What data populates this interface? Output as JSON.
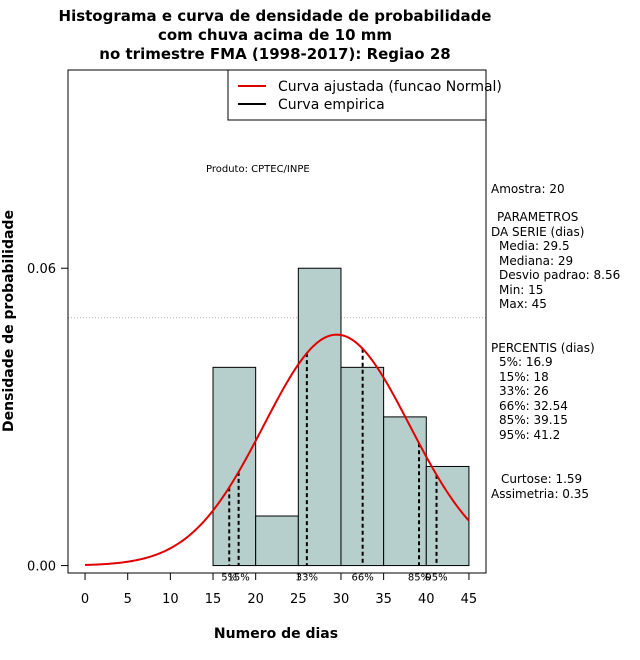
{
  "chart_data": {
    "type": "bar",
    "title_lines": [
      "Histograma e curva de densidade de probabilidade",
      "com chuva acima de 10 mm",
      "no trimestre FMA (1998-2017): Regiao 28"
    ],
    "xlabel": "Numero de dias",
    "ylabel": "Densidade de probabilidade",
    "xlim": [
      -2,
      47
    ],
    "ylim": [
      -0.0015,
      0.1
    ],
    "xticks": [
      0,
      5,
      10,
      15,
      20,
      25,
      30,
      35,
      40,
      45
    ],
    "yticks": [
      0.0,
      0.06
    ],
    "ytick_labels": [
      "0.00",
      "0.06"
    ],
    "gridlines_y": [
      0.05,
      0.1
    ],
    "bins": [
      {
        "from": 15,
        "to": 20,
        "density": 0.04
      },
      {
        "from": 20,
        "to": 25,
        "density": 0.01
      },
      {
        "from": 25,
        "to": 30,
        "density": 0.06
      },
      {
        "from": 30,
        "to": 35,
        "density": 0.04
      },
      {
        "from": 35,
        "to": 40,
        "density": 0.03
      },
      {
        "from": 40,
        "to": 45,
        "density": 0.02
      }
    ],
    "normal_fit": {
      "mean": 29.5,
      "sd": 8.56,
      "x_from": 0,
      "x_to": 45
    },
    "percentile_lines": [
      {
        "label": "5%",
        "x": 16.9
      },
      {
        "label": "15%",
        "x": 18
      },
      {
        "label": "33%",
        "x": 26
      },
      {
        "label": "66%",
        "x": 32.54
      },
      {
        "label": "85%",
        "x": 39.15
      },
      {
        "label": "95%",
        "x": 41.2
      }
    ],
    "legend": [
      {
        "label": "Curva ajustada (funcao Normal)",
        "color": "#e00000"
      },
      {
        "label": "Curva empirica",
        "color": "#000000"
      }
    ],
    "bar_color": "#b7cfcc",
    "curve_color": "#e00000",
    "product_text": "Produto: CPTEC/INPE"
  },
  "side_panel": {
    "sample": "Amostra: 20",
    "params_title_1": "PARAMETROS",
    "params_title_2": "DA SERIE (dias)",
    "params": [
      "Media: 29.5",
      "Mediana: 29",
      "Desvio padrao: 8.56",
      "Min: 15",
      "Max: 45"
    ],
    "percentis_title": "PERCENTIS (dias)",
    "percentis": [
      "5%: 16.9",
      "15%: 18",
      "33%: 26",
      "66%: 32.54",
      "85%: 39.15",
      "95%: 41.2"
    ],
    "curtose": "Curtose: 1.59",
    "assimetria": "Assimetria: 0.35"
  }
}
